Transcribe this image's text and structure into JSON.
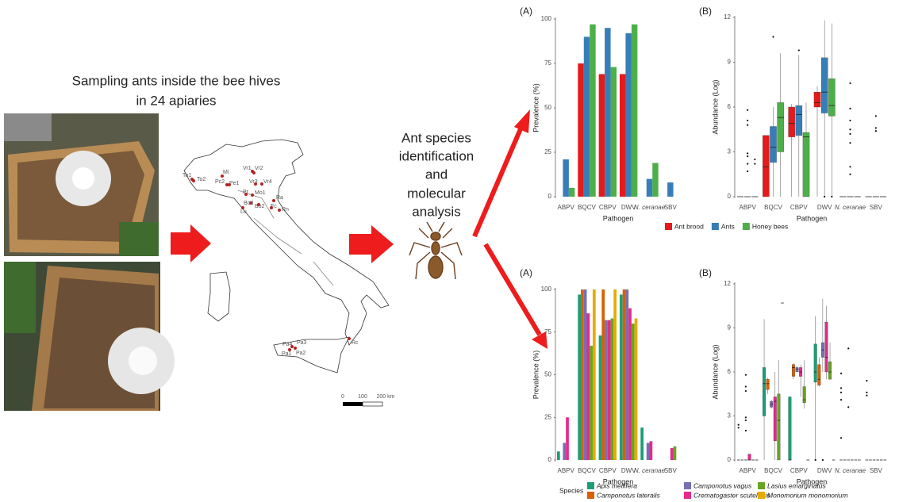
{
  "left": {
    "title_lines": [
      "Sampling ants inside the bee hives",
      "in 24 apiaries"
    ]
  },
  "middle": {
    "lines": [
      "Ant species",
      "identification",
      "and",
      "molecular",
      "analysis"
    ]
  },
  "map": {
    "sites": [
      "To1",
      "To2",
      "Mi",
      "Pc2",
      "Pe1",
      "Vr1",
      "Vr2",
      "Vr3",
      "Vr4",
      "Pr",
      "Mo1",
      "Ra",
      "Bo3",
      "Bo2",
      "Fc",
      "Rn",
      "Lu",
      "Pa4",
      "Pa3",
      "Pa2",
      "Pa1",
      "Rc"
    ],
    "scale": [
      "0",
      "100",
      "200 km"
    ]
  },
  "chart_data": [
    {
      "type": "bar",
      "panel": "(A)",
      "xlabel": "Pathogen",
      "ylabel": "Prevalence (%)",
      "categories": [
        "ABPV",
        "BQCV",
        "CBPV",
        "DWV",
        "N. ceranae",
        "SBV"
      ],
      "ylim": [
        0,
        100
      ],
      "yticks": [
        0,
        25,
        50,
        75,
        100
      ],
      "legend": "bottom",
      "series": [
        {
          "name": "Ant brood",
          "color": "#e41a1c",
          "values": [
            0,
            75,
            69,
            69,
            0,
            0
          ]
        },
        {
          "name": "Ants",
          "color": "#377eb8",
          "values": [
            21,
            90,
            95,
            92,
            10,
            8
          ]
        },
        {
          "name": "Honey bees",
          "color": "#4daf4a",
          "values": [
            5,
            97,
            73,
            97,
            19,
            0
          ]
        }
      ]
    },
    {
      "type": "box",
      "panel": "(B)",
      "xlabel": "Pathogen",
      "ylabel": "Abundance (Log)",
      "categories": [
        "ABPV",
        "BQCV",
        "CBPV",
        "DWV",
        "N. ceranae",
        "SBV"
      ],
      "ylim": [
        0,
        12
      ],
      "yticks": [
        0,
        3,
        6,
        9,
        12
      ],
      "series": [
        {
          "color": "#e41a1c",
          "boxes": [
            [
              0,
              0,
              0,
              0,
              0
            ],
            [
              0,
              0,
              2,
              4.1,
              4.1
            ],
            [
              0,
              4,
              4.9,
              6,
              6.2
            ],
            [
              0,
              6,
              6.3,
              7,
              7.4
            ],
            [
              0,
              0,
              0,
              0,
              0
            ],
            [
              0,
              0,
              0,
              0,
              0
            ]
          ]
        },
        {
          "color": "#377eb8",
          "boxes": [
            [
              0,
              0,
              0,
              0,
              0
            ],
            [
              0,
              2.3,
              3.3,
              4.7,
              6
            ],
            [
              0,
              4.1,
              5.5,
              6.1,
              9.5
            ],
            [
              0,
              5.6,
              7,
              9.3,
              11.8
            ],
            [
              0,
              0,
              0,
              0,
              0
            ],
            [
              0,
              0,
              0,
              0,
              0
            ]
          ],
          "outliers": [
            [
              5.8,
              5.1,
              4.8,
              2.9,
              2.7,
              2.2,
              1.7
            ],
            [
              10.7
            ],
            [
              9.8
            ],
            [
              0
            ],
            [
              7.6,
              5.9,
              5.1,
              4.5,
              4.2,
              3.6,
              2,
              1.5
            ],
            [
              5.4,
              4.6,
              4.4
            ]
          ]
        },
        {
          "color": "#4daf4a",
          "boxes": [
            [
              0,
              0,
              0,
              0,
              0
            ],
            [
              0,
              3,
              5.3,
              6.3,
              9.6
            ],
            [
              0,
              0,
              4,
              4.3,
              6.3
            ],
            [
              0,
              5.4,
              6.1,
              7.9,
              11.6
            ],
            [
              0,
              0,
              0,
              0,
              0
            ],
            [
              0,
              0,
              0,
              0,
              0
            ]
          ],
          "outliers": [
            [
              2.5,
              2.2
            ],
            [],
            [],
            [
              0
            ],
            [],
            []
          ]
        }
      ]
    },
    {
      "type": "bar",
      "panel": "(A)",
      "xlabel": "Pathogen",
      "ylabel": "Prevalence (%)",
      "categories": [
        "ABPV",
        "BQCV",
        "CBPV",
        "DWV",
        "N. ceranae",
        "SBV"
      ],
      "ylim": [
        0,
        100
      ],
      "yticks": [
        0,
        25,
        50,
        75,
        100
      ],
      "legend": "bottom",
      "legend_title": "Species",
      "series": [
        {
          "name": "Apis mellifera",
          "color": "#1b9e77",
          "values": [
            5,
            97,
            73,
            97,
            19,
            0
          ]
        },
        {
          "name": "Camponotus lateralis",
          "color": "#d95f02",
          "values": [
            0,
            100,
            100,
            100,
            0,
            0
          ]
        },
        {
          "name": "Camponotus vagus",
          "color": "#7570b3",
          "values": [
            10,
            100,
            82,
            100,
            10,
            0
          ]
        },
        {
          "name": "Crematogaster scutellaris",
          "color": "#e7298a",
          "values": [
            25,
            86,
            82,
            89,
            11,
            7
          ]
        },
        {
          "name": "Lasius emarginatus",
          "color": "#66a61e",
          "values": [
            0,
            67,
            83,
            80,
            0,
            8
          ]
        },
        {
          "name": "Monomorium monomorium",
          "color": "#e6ab02",
          "values": [
            0,
            100,
            100,
            83,
            0,
            0
          ]
        }
      ]
    },
    {
      "type": "box",
      "panel": "(B)",
      "xlabel": "Pathogen",
      "ylabel": "Abundance (Log)",
      "categories": [
        "ABPV",
        "BQCV",
        "CBPV",
        "DWV",
        "N. ceranae",
        "SBV"
      ],
      "ylim": [
        0,
        12
      ],
      "yticks": [
        0,
        3,
        6,
        9,
        12
      ],
      "series": [
        {
          "color": "#1b9e77",
          "boxes": [
            [
              0,
              0,
              0,
              0,
              0
            ],
            [
              0,
              3,
              5.2,
              6.3,
              9.6
            ],
            [
              0,
              0,
              0,
              4.3,
              4.3
            ],
            [
              0,
              5.3,
              6,
              7.9,
              9.8
            ],
            [
              0,
              0,
              0,
              0,
              0
            ],
            [
              0,
              0,
              0,
              0,
              0
            ]
          ],
          "outliers": [
            [
              2.4,
              2.2
            ],
            [],
            [],
            [
              0
            ],
            [
              5.9,
              4.9,
              4.6,
              4.1,
              1.5
            ],
            [
              5.4,
              4.6,
              4.4
            ]
          ]
        },
        {
          "color": "#d95f02",
          "boxes": [
            [
              0,
              0,
              0,
              0,
              0
            ],
            [
              4.5,
              4.8,
              5.2,
              5.5,
              5.6
            ],
            [
              5.5,
              5.7,
              6.3,
              6.5,
              6.6
            ],
            [
              5,
              5.1,
              5.5,
              6.5,
              7
            ],
            [
              0,
              0,
              0,
              0,
              0
            ],
            [
              0,
              0,
              0,
              0,
              0
            ]
          ]
        },
        {
          "color": "#7570b3",
          "boxes": [
            [
              0,
              0,
              0,
              0,
              0
            ],
            [
              3.5,
              3.6,
              3.8,
              4,
              4.1
            ],
            [
              6,
              6,
              6.2,
              6.3,
              6.4
            ],
            [
              6,
              7,
              7.5,
              8,
              11
            ],
            [
              0,
              0,
              0,
              0,
              0
            ],
            [
              0,
              0,
              0,
              0,
              0
            ]
          ],
          "outliers": [
            [
              5.8,
              5,
              4.7,
              2.9,
              2.7,
              2
            ],
            [],
            [],
            [
              0
            ],
            [
              7.6,
              3.6
            ],
            []
          ]
        },
        {
          "color": "#e7298a",
          "boxes": [
            [
              0,
              0,
              0,
              0.4,
              0.4
            ],
            [
              0,
              1.3,
              4,
              4.3,
              6
            ],
            [
              4.3,
              5.7,
              6,
              6.3,
              6.5
            ],
            [
              5.5,
              6,
              7,
              9.4,
              10.5
            ],
            [
              0,
              0,
              0,
              0,
              0
            ],
            [
              0,
              0,
              0,
              0,
              0
            ]
          ]
        },
        {
          "color": "#66a61e",
          "boxes": [
            [
              0,
              0,
              0,
              0,
              0
            ],
            [
              0,
              0,
              2.7,
              4.5,
              6.8
            ],
            [
              3.5,
              3.9,
              4.1,
              5,
              6.8
            ],
            [
              5.5,
              5.5,
              6,
              6.7,
              8
            ],
            [
              0,
              0,
              0,
              0,
              0
            ],
            [
              0,
              0,
              0,
              0,
              0
            ]
          ]
        },
        {
          "color": "#e6ab02",
          "boxes": [
            [
              0,
              0,
              0,
              0,
              0
            ],
            [
              10.7,
              10.7,
              10.7,
              10.7,
              10.7
            ],
            [
              0,
              0,
              0,
              0,
              0
            ],
            [
              0,
              0,
              0,
              0,
              0
            ],
            [
              0,
              0,
              0,
              0,
              0
            ],
            [
              0,
              0,
              0,
              0,
              0
            ]
          ]
        }
      ]
    }
  ]
}
